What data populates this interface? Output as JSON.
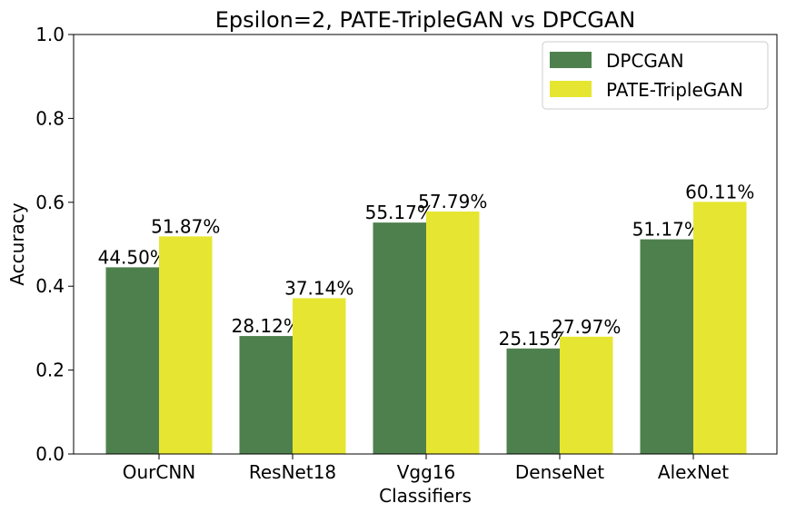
{
  "chart_data": {
    "type": "bar",
    "title": "Epsilon=2, PATE-TripleGAN vs DPCGAN",
    "xlabel": "Classifiers",
    "ylabel": "Accuracy",
    "ylim": [
      0,
      1.0
    ],
    "yticks": [
      "0.0",
      "0.2",
      "0.4",
      "0.6",
      "0.8",
      "1.0"
    ],
    "ytick_values": [
      0,
      0.2,
      0.4,
      0.6,
      0.8,
      1.0
    ],
    "categories": [
      "OurCNN",
      "ResNet18",
      "Vgg16",
      "DenseNet",
      "AlexNet"
    ],
    "series": [
      {
        "name": "DPCGAN",
        "color": "#4e804e",
        "values": [
          0.445,
          0.2812,
          0.5517,
          0.2515,
          0.5117
        ],
        "labels": [
          "44.50%",
          "28.12%",
          "55.17%",
          "25.15%",
          "51.17%"
        ]
      },
      {
        "name": "PATE-TripleGAN",
        "color": "#e6e632",
        "values": [
          0.5187,
          0.3714,
          0.5779,
          0.2797,
          0.6011
        ],
        "labels": [
          "51.87%",
          "37.14%",
          "57.79%",
          "27.97%",
          "60.11%"
        ]
      }
    ],
    "legend_position": "top-right",
    "grid": false
  }
}
